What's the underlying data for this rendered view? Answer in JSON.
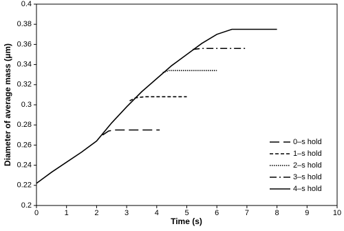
{
  "chart_data": {
    "type": "line",
    "x_label": "Time (s)",
    "y_label": "Diameter of average mass (μm)",
    "xlim": [
      0,
      10
    ],
    "xticks": [
      0,
      1,
      2,
      3,
      4,
      5,
      6,
      7,
      8,
      9,
      10
    ],
    "ylim": [
      0.2,
      0.4
    ],
    "yticks": [
      0.2,
      0.22,
      0.24,
      0.26,
      0.28,
      0.3,
      0.32,
      0.34,
      0.36,
      0.38,
      0.4
    ],
    "grid": false,
    "legend": "lower right",
    "series": [
      {
        "name": "0–s hold",
        "color": "#000000",
        "linestyle": "dashed",
        "x": [
          2.2,
          2.4,
          2.6,
          3.0,
          3.5,
          4.1
        ],
        "values": [
          0.27,
          0.274,
          0.275,
          0.275,
          0.275,
          0.275
        ]
      },
      {
        "name": "1–s hold",
        "color": "#000000",
        "linestyle": "shortdash",
        "x": [
          3.1,
          3.3,
          3.6,
          4.0,
          4.5,
          5.0
        ],
        "values": [
          0.304,
          0.307,
          0.308,
          0.308,
          0.308,
          0.308
        ]
      },
      {
        "name": "2–s hold",
        "color": "#000000",
        "linestyle": "dotted",
        "x": [
          4.2,
          4.4,
          4.8,
          5.2,
          5.6,
          6.0
        ],
        "values": [
          0.332,
          0.334,
          0.334,
          0.334,
          0.334,
          0.334
        ]
      },
      {
        "name": "3–s hold",
        "color": "#000000",
        "linestyle": "dashdot",
        "x": [
          5.2,
          5.5,
          6.0,
          6.5,
          7.0
        ],
        "values": [
          0.355,
          0.356,
          0.356,
          0.356,
          0.356
        ]
      },
      {
        "name": "4–s hold",
        "color": "#000000",
        "linestyle": "solid",
        "x": [
          0,
          0.5,
          1,
          1.5,
          2,
          2.5,
          3,
          3.5,
          4,
          4.5,
          5,
          5.5,
          6,
          6.5,
          7,
          7.5,
          8
        ],
        "values": [
          0.222,
          0.233,
          0.243,
          0.253,
          0.264,
          0.282,
          0.298,
          0.313,
          0.326,
          0.339,
          0.35,
          0.361,
          0.37,
          0.375,
          0.375,
          0.375,
          0.375
        ]
      }
    ]
  }
}
